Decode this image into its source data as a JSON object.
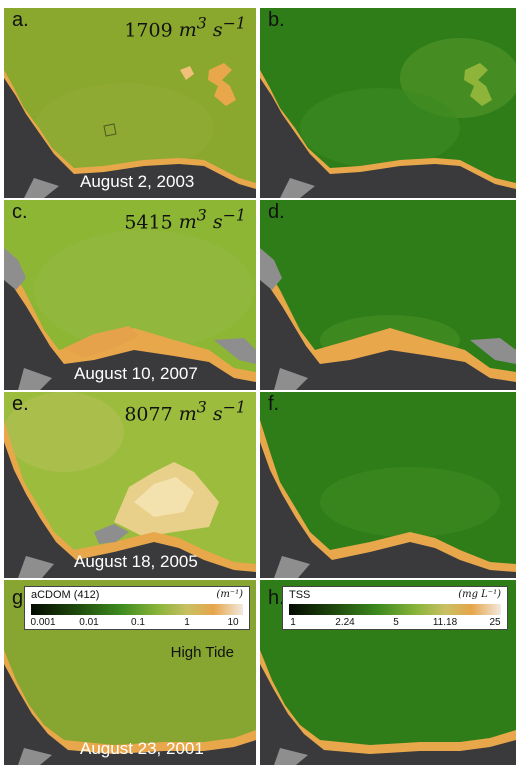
{
  "panels": {
    "a": {
      "label": "a.",
      "flow_value": "1709",
      "date": "August 2,  2003"
    },
    "b": {
      "label": "b."
    },
    "c": {
      "label": "c.",
      "flow_value": "5415",
      "date": "August 10, 2007"
    },
    "d": {
      "label": "d."
    },
    "e": {
      "label": "e.",
      "flow_value": "8077",
      "date": "August 18, 2005"
    },
    "f": {
      "label": "f."
    },
    "g": {
      "label": "g.",
      "date": "August 23, 2001",
      "note": "High Tide"
    },
    "h": {
      "label": "h."
    }
  },
  "flow_unit": {
    "base": "m",
    "exp1": "3",
    "mid": "s",
    "exp2": "−1"
  },
  "legend_acdom": {
    "title": "aCDOM (412)",
    "unit": "(m⁻¹)",
    "ticks": [
      "0.001",
      "0.01",
      "0.1",
      "1",
      "10"
    ]
  },
  "legend_tss": {
    "title": "TSS",
    "unit": "(mg L⁻¹)",
    "ticks": [
      "1",
      "2.24",
      "5",
      "11.18",
      "25"
    ]
  },
  "colors": {
    "land": "#3a3a3d",
    "mask_gray": "#8e8e8e",
    "acdom_water_a": "#8aa72e",
    "acdom_water_c": "#8cb634",
    "acdom_water_e": "#9cbc3d",
    "acdom_water_g": "#86a631",
    "tss_water": "#2e7d19",
    "coastal_orange": "#e9a74b"
  }
}
